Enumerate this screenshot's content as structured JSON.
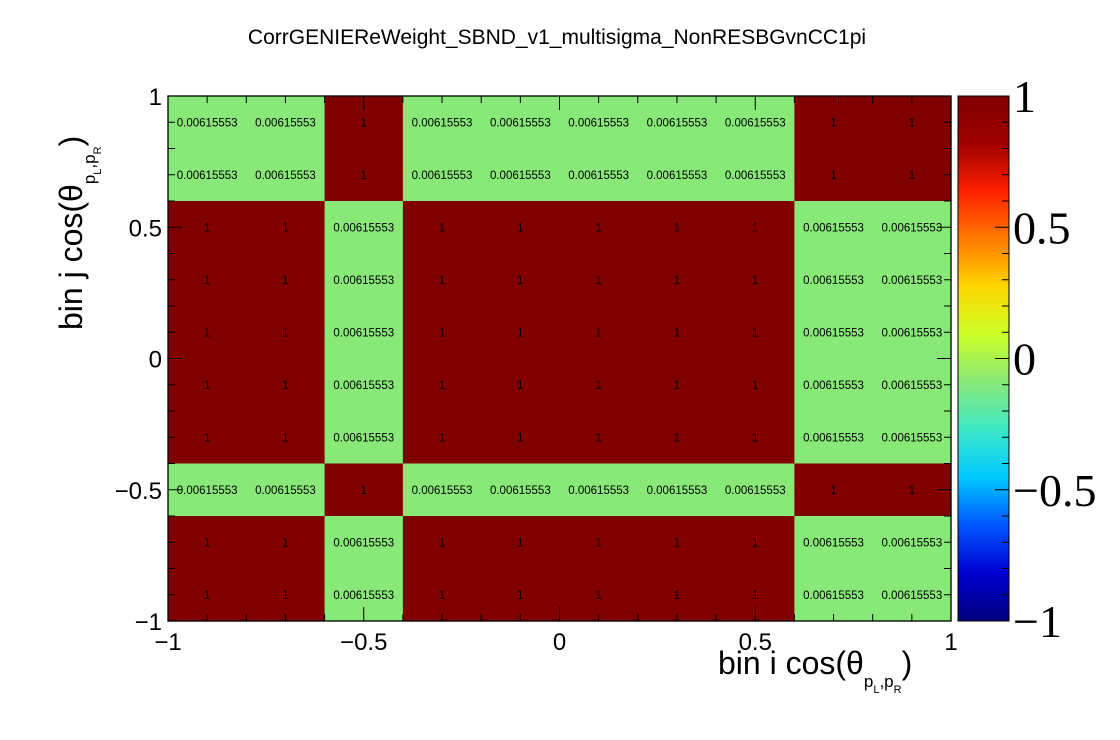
{
  "chart_data": {
    "type": "heatmap",
    "title": "CorrGENIEReWeight_SBND_v1_multisigma_NonRESBGvnCC1pi",
    "xlabel": {
      "text": "bin i cos(θ",
      "sub1": "p",
      "sub_l": "L",
      "comma": ",",
      "sub2": "p",
      "sub_r": "R",
      "close": ")"
    },
    "ylabel": {
      "text": "bin j cos(θ",
      "sub1": "p",
      "sub_l": "L",
      "comma": ",",
      "sub2": "p",
      "sub_r": "R",
      "close": ")"
    },
    "xlim": [
      -1,
      1
    ],
    "ylim": [
      -1,
      1
    ],
    "x_tick_labels": [
      "−1",
      "−0.5",
      "0",
      "0.5",
      "1"
    ],
    "y_tick_labels": [
      "−1",
      "−0.5",
      "0",
      "0.5",
      "1"
    ],
    "x_ticks": [
      -1,
      -0.5,
      0,
      0.5,
      1
    ],
    "y_ticks": [
      -1,
      -0.5,
      0,
      0.5,
      1
    ],
    "x_bin_edges": [
      -1,
      -0.8,
      -0.6,
      -0.4,
      -0.2,
      0,
      0.2,
      0.4,
      0.6,
      0.8,
      1
    ],
    "y_bin_edges": [
      -1,
      -0.8,
      -0.6,
      -0.4,
      -0.2,
      0,
      0.2,
      0.4,
      0.6,
      0.8,
      1
    ],
    "zlim": [
      -1,
      1
    ],
    "z_tick_labels": [
      "−1",
      "−0.5",
      "0",
      "0.5",
      "1"
    ],
    "z_ticks": [
      -1,
      -0.5,
      0,
      0.5,
      1
    ],
    "values_by_row_from_top": [
      [
        0.00615553,
        0.00615553,
        1,
        0.00615553,
        0.00615553,
        0.00615553,
        0.00615553,
        0.00615553,
        1,
        1
      ],
      [
        0.00615553,
        0.00615553,
        1,
        0.00615553,
        0.00615553,
        0.00615553,
        0.00615553,
        0.00615553,
        1,
        1
      ],
      [
        1,
        1,
        0.00615553,
        1,
        1,
        1,
        1,
        1,
        0.00615553,
        0.00615553
      ],
      [
        1,
        1,
        0.00615553,
        1,
        1,
        1,
        1,
        1,
        0.00615553,
        0.00615553
      ],
      [
        1,
        1,
        0.00615553,
        1,
        1,
        1,
        1,
        1,
        0.00615553,
        0.00615553
      ],
      [
        1,
        1,
        0.00615553,
        1,
        1,
        1,
        1,
        1,
        0.00615553,
        0.00615553
      ],
      [
        1,
        1,
        0.00615553,
        1,
        1,
        1,
        1,
        1,
        0.00615553,
        0.00615553
      ],
      [
        0.00615553,
        0.00615553,
        1,
        0.00615553,
        0.00615553,
        0.00615553,
        0.00615553,
        0.00615553,
        1,
        1
      ],
      [
        1,
        1,
        0.00615553,
        1,
        1,
        1,
        1,
        1,
        0.00615553,
        0.00615553
      ],
      [
        1,
        1,
        0.00615553,
        1,
        1,
        1,
        1,
        1,
        0.00615553,
        0.00615553
      ]
    ],
    "colors": {
      "high": "#800000",
      "low": "#88e878",
      "palette": [
        "#00007f",
        "#0000d0",
        "#0055ff",
        "#00c8ff",
        "#3de8c8",
        "#88e878",
        "#cbff26",
        "#ffd700",
        "#ff7a00",
        "#ff2000",
        "#a00000",
        "#800000"
      ]
    },
    "grid": false,
    "legend": "colorbar-right"
  }
}
